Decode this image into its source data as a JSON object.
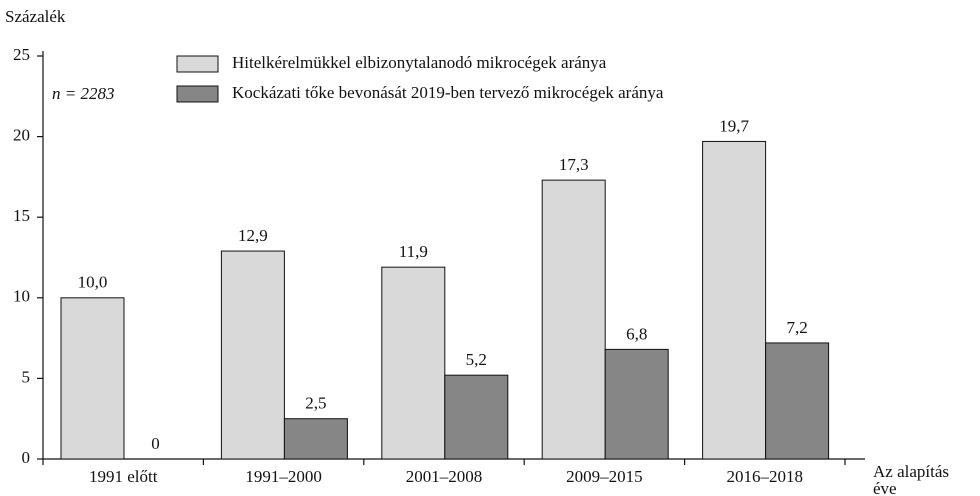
{
  "chart_data": {
    "type": "bar",
    "ylabel": "Százalék",
    "annotation": "n = 2283",
    "xlabel_lines": [
      "Az alapítás",
      "éve"
    ],
    "categories": [
      "1991 előtt",
      "1991–2000",
      "2001–2008",
      "2009–2015",
      "2016–2018"
    ],
    "series": [
      {
        "name": "Hitelkérelmükkel elbizonytalanodó mikrocégek aránya",
        "color": "#d9d9d9",
        "values": [
          10.0,
          12.9,
          11.9,
          17.3,
          19.7
        ],
        "value_labels": [
          "10,0",
          "12,9",
          "11,9",
          "17,3",
          "19,7"
        ]
      },
      {
        "name": "Kockázati tőke bevonását 2019-ben tervező mikrocégek aránya",
        "color": "#868686",
        "values": [
          0,
          2.5,
          5.2,
          6.8,
          7.2
        ],
        "value_labels": [
          "0",
          "2,5",
          "5,2",
          "6,8",
          "7,2"
        ]
      }
    ],
    "ylim": [
      0,
      25
    ],
    "yticks": [
      0,
      5,
      10,
      15,
      20,
      25
    ],
    "grid": false
  }
}
